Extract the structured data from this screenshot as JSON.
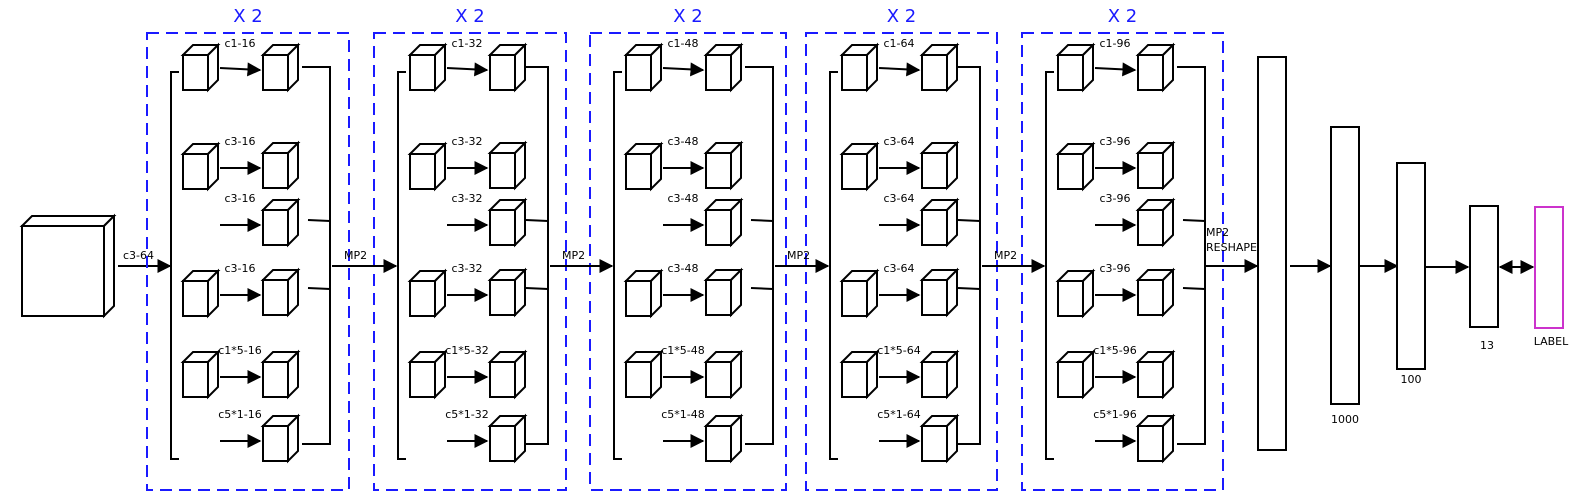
{
  "input_conv_label": "c3-64",
  "blocks": [
    {
      "repeat": "X 2",
      "entry_label": "",
      "branches": [
        "c1-16",
        "c3-16",
        "c3-16",
        "c3-16",
        "c1*5-16",
        "c5*1-16"
      ]
    },
    {
      "repeat": "X 2",
      "entry_label": "MP2",
      "branches": [
        "c1-32",
        "c3-32",
        "c3-32",
        "c3-32",
        "c1*5-32",
        "c5*1-32"
      ]
    },
    {
      "repeat": "X 2",
      "entry_label": "MP2",
      "branches": [
        "c1-48",
        "c3-48",
        "c3-48",
        "c3-48",
        "c1*5-48",
        "c5*1-48"
      ]
    },
    {
      "repeat": "X 2",
      "entry_label": "MP2",
      "branches": [
        "c1-64",
        "c3-64",
        "c3-64",
        "c3-64",
        "c1*5-64",
        "c5*1-64"
      ]
    },
    {
      "repeat": "X 2",
      "entry_label": "MP2",
      "branches": [
        "c1-96",
        "c3-96",
        "c3-96",
        "c3-96",
        "c1*5-96",
        "c5*1-96"
      ]
    }
  ],
  "flatten": {
    "line1": "MP2",
    "line2": "RESHAPE"
  },
  "dense_layers": [
    {
      "label": ""
    },
    {
      "label": "1000"
    },
    {
      "label": "100"
    },
    {
      "label": "13"
    }
  ],
  "output": {
    "label": "LABEL",
    "color": "#cc33cc"
  },
  "colors": {
    "repeat_box": "#1a1aff",
    "line": "#000000"
  }
}
